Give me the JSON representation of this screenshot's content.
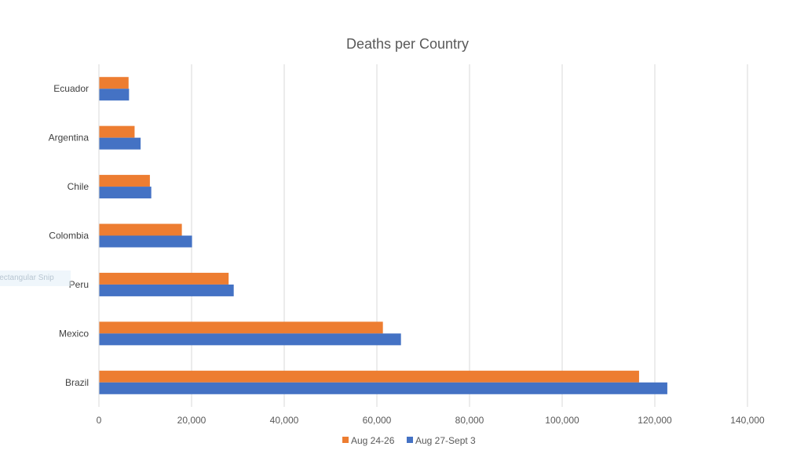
{
  "chart_data": {
    "type": "bar",
    "orientation": "horizontal",
    "title": "Deaths per Country",
    "xlabel": "",
    "ylabel": "",
    "xlim": [
      0,
      140000
    ],
    "x_ticks": [
      0,
      20000,
      40000,
      60000,
      80000,
      100000,
      120000,
      140000
    ],
    "x_tick_labels": [
      "0",
      "20,000",
      "40,000",
      "60,000",
      "80,000",
      "100,000",
      "120,000",
      "140,000"
    ],
    "categories": [
      "Brazil",
      "Mexico",
      "Peru",
      "Colombia",
      "Chile",
      "Argentina",
      "Ecuador"
    ],
    "series": [
      {
        "name": "Aug 24-26",
        "color": "#ed7d31",
        "values": [
          116600,
          61300,
          28000,
          17900,
          11000,
          7700,
          6400
        ]
      },
      {
        "name": "Aug 27-Sept 3",
        "color": "#4472c4",
        "values": [
          122700,
          65200,
          29100,
          20100,
          11300,
          9000,
          6500
        ]
      }
    ],
    "grid": true,
    "legend_position": "bottom"
  },
  "overlay": {
    "snip_label": "Rectangular Snip"
  }
}
